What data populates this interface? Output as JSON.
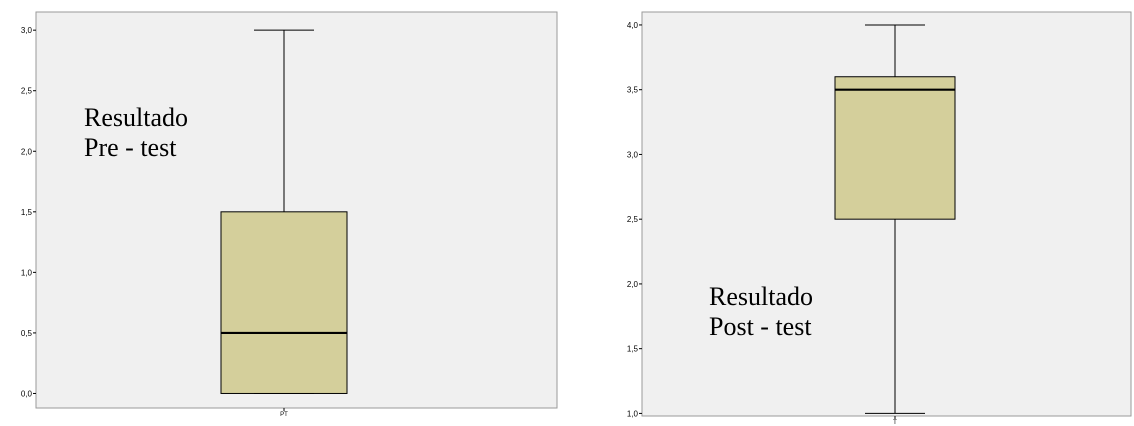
{
  "chart_data": [
    {
      "type": "box",
      "title": "",
      "xlabel": "",
      "ylabel": "",
      "ylim": [
        -0.12,
        3.15
      ],
      "yticks": [
        "0,0",
        "0,5",
        "1,0",
        "1,5",
        "2,0",
        "2,5",
        "3,0"
      ],
      "ytick_values": [
        0,
        0.5,
        1.0,
        1.5,
        2.0,
        2.5,
        3.0
      ],
      "categories": [
        "PT"
      ],
      "box": {
        "min": 0,
        "q1": 0,
        "median": 0.5,
        "q3": 1.5,
        "max": 3.0
      },
      "annotation": [
        "Resultado",
        "Pre - test"
      ],
      "box_color": "#d4cf9b",
      "plot_bg": "#f0f0f0"
    },
    {
      "type": "box",
      "title": "",
      "xlabel": "",
      "ylabel": "",
      "ylim": [
        0.98,
        4.1
      ],
      "yticks": [
        "1,0",
        "1,5",
        "2,0",
        "2,5",
        "3,0",
        "3,5",
        "4,0"
      ],
      "ytick_values": [
        1.0,
        1.5,
        2.0,
        2.5,
        3.0,
        3.5,
        4.0
      ],
      "categories": [
        "T"
      ],
      "box": {
        "min": 1.0,
        "q1": 2.5,
        "median": 3.5,
        "q3": 3.6,
        "max": 4.0
      },
      "annotation": [
        "Resultado",
        "Post - test"
      ],
      "box_color": "#d4cf9b",
      "plot_bg": "#f0f0f0"
    }
  ]
}
